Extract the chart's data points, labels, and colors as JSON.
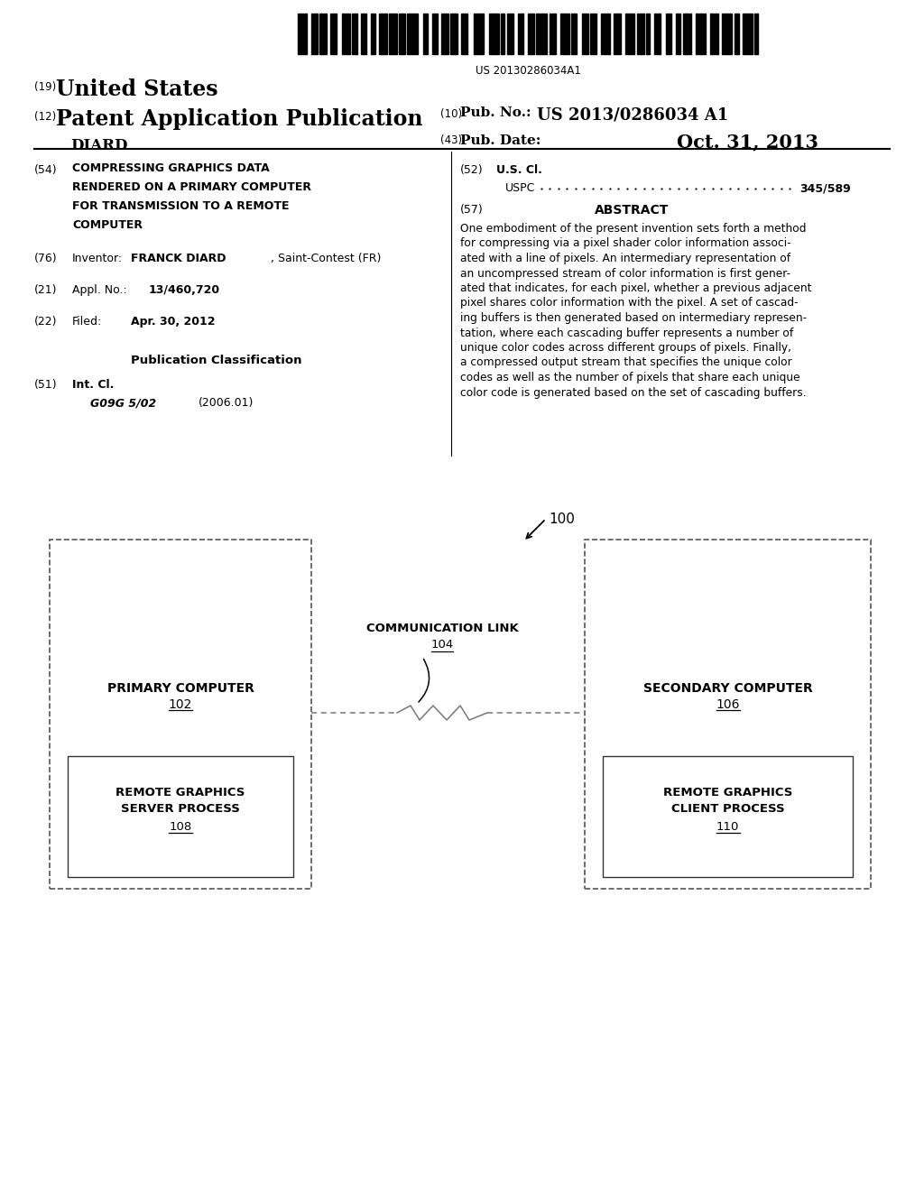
{
  "bg_color": "#ffffff",
  "barcode_text": "US 20130286034A1",
  "header": {
    "number_19": "(19)",
    "united_states": "United States",
    "number_12": "(12)",
    "patent_app": "Patent Application Publication",
    "name": "DIARD",
    "number_10": "(10)",
    "pub_no_label": "Pub. No.:",
    "pub_no_val": "US 2013/0286034 A1",
    "number_43": "(43)",
    "pub_date_label": "Pub. Date:",
    "pub_date_val": "Oct. 31, 2013"
  },
  "left_col": {
    "item54_num": "(54)",
    "item54_lines": [
      "COMPRESSING GRAPHICS DATA",
      "RENDERED ON A PRIMARY COMPUTER",
      "FOR TRANSMISSION TO A REMOTE",
      "COMPUTER"
    ],
    "item76_num": "(76)",
    "item76_label": "Inventor:",
    "item76_name": "FRANCK DIARD",
    "item76_rest": ", Saint-Contest (FR)",
    "item21_num": "(21)",
    "item21_label": "Appl. No.:",
    "item21_val": "13/460,720",
    "item22_num": "(22)",
    "item22_label": "Filed:",
    "item22_val": "Apr. 30, 2012",
    "pub_class_title": "Publication Classification",
    "item51_num": "(51)",
    "item51_label": "Int. Cl.",
    "item51_code": "G09G 5/02",
    "item51_year": "(2006.01)"
  },
  "right_col": {
    "item52_num": "(52)",
    "item52_label": "U.S. Cl.",
    "item52_uspc": "USPC",
    "item52_val": "345/589",
    "item57_num": "(57)",
    "item57_title": "ABSTRACT",
    "abstract_lines": [
      "One embodiment of the present invention sets forth a method",
      "for compressing via a pixel shader color information associ-",
      "ated with a line of pixels. An intermediary representation of",
      "an uncompressed stream of color information is first gener-",
      "ated that indicates, for each pixel, whether a previous adjacent",
      "pixel shares color information with the pixel. A set of cascad-",
      "ing buffers is then generated based on intermediary represen-",
      "tation, where each cascading buffer represents a number of",
      "unique color codes across different groups of pixels. Finally,",
      "a compressed output stream that specifies the unique color",
      "codes as well as the number of pixels that share each unique",
      "color code is generated based on the set of cascading buffers."
    ]
  },
  "diagram": {
    "ref100": "100",
    "label_primary": "PRIMARY COMPUTER",
    "label_primary_ref": "102",
    "label_secondary": "SECONDARY COMPUTER",
    "label_secondary_ref": "106",
    "label_server_line1": "REMOTE GRAPHICS",
    "label_server_line2": "SERVER PROCESS",
    "label_server_ref": "108",
    "label_client_line1": "REMOTE GRAPHICS",
    "label_client_line2": "CLIENT PROCESS",
    "label_client_ref": "110",
    "comm_link_label": "COMMUNICATION LINK",
    "comm_link_ref": "104"
  }
}
